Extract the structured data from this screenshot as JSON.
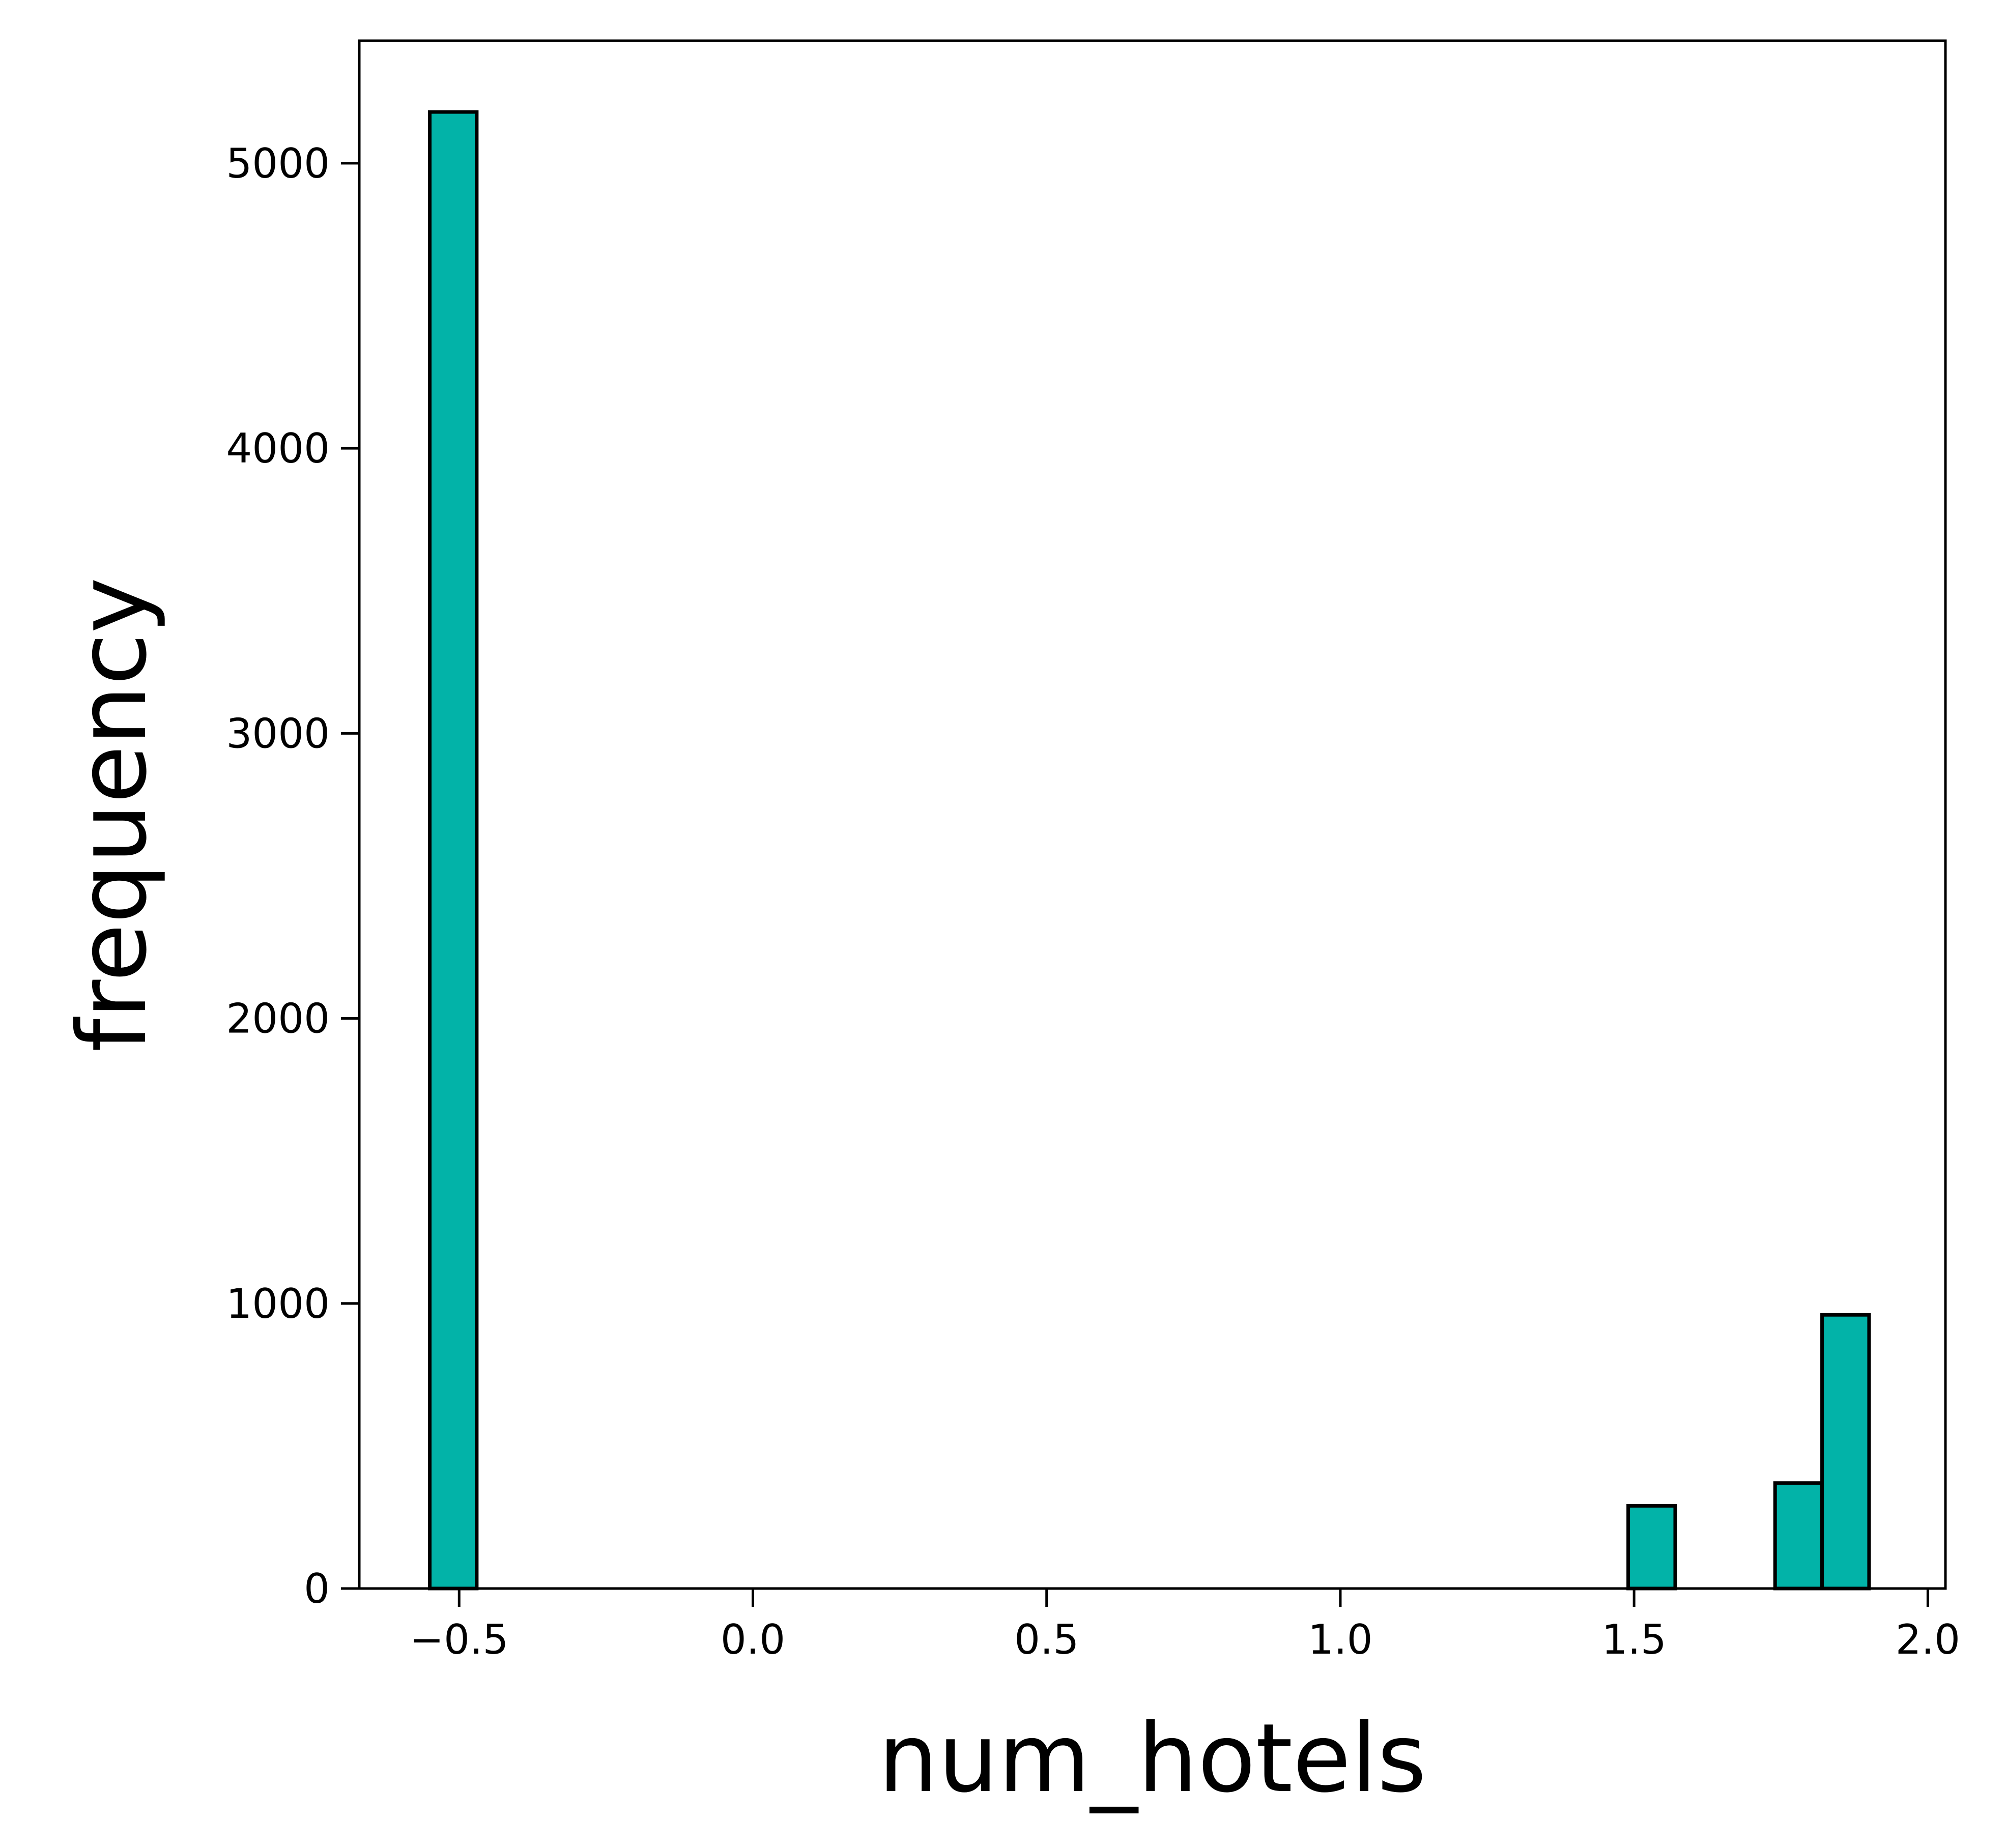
{
  "chart_data": {
    "type": "bar",
    "xlabel": "num_hotels",
    "ylabel": "frequency",
    "xlim": [
      -0.67,
      2.03
    ],
    "ylim": [
      0,
      5430
    ],
    "x_ticks": [
      {
        "value": -0.5,
        "label": "−0.5"
      },
      {
        "value": 0.0,
        "label": "0.0"
      },
      {
        "value": 0.5,
        "label": "0.5"
      },
      {
        "value": 1.0,
        "label": "1.0"
      },
      {
        "value": 1.5,
        "label": "1.5"
      },
      {
        "value": 2.0,
        "label": "2.0"
      }
    ],
    "y_ticks": [
      {
        "value": 0,
        "label": "0"
      },
      {
        "value": 1000,
        "label": "1000"
      },
      {
        "value": 2000,
        "label": "2000"
      },
      {
        "value": 3000,
        "label": "3000"
      },
      {
        "value": 4000,
        "label": "4000"
      },
      {
        "value": 5000,
        "label": "5000"
      }
    ],
    "bins": [
      {
        "x0": -0.55,
        "x1": -0.47,
        "count": 5180
      },
      {
        "x0": 1.49,
        "x1": 1.57,
        "count": 290
      },
      {
        "x0": 1.74,
        "x1": 1.82,
        "count": 370
      },
      {
        "x0": 1.82,
        "x1": 1.9,
        "count": 960
      }
    ],
    "bar_color": "#02b3a8",
    "edge_color": "#000000",
    "grid": false,
    "legend": false
  }
}
